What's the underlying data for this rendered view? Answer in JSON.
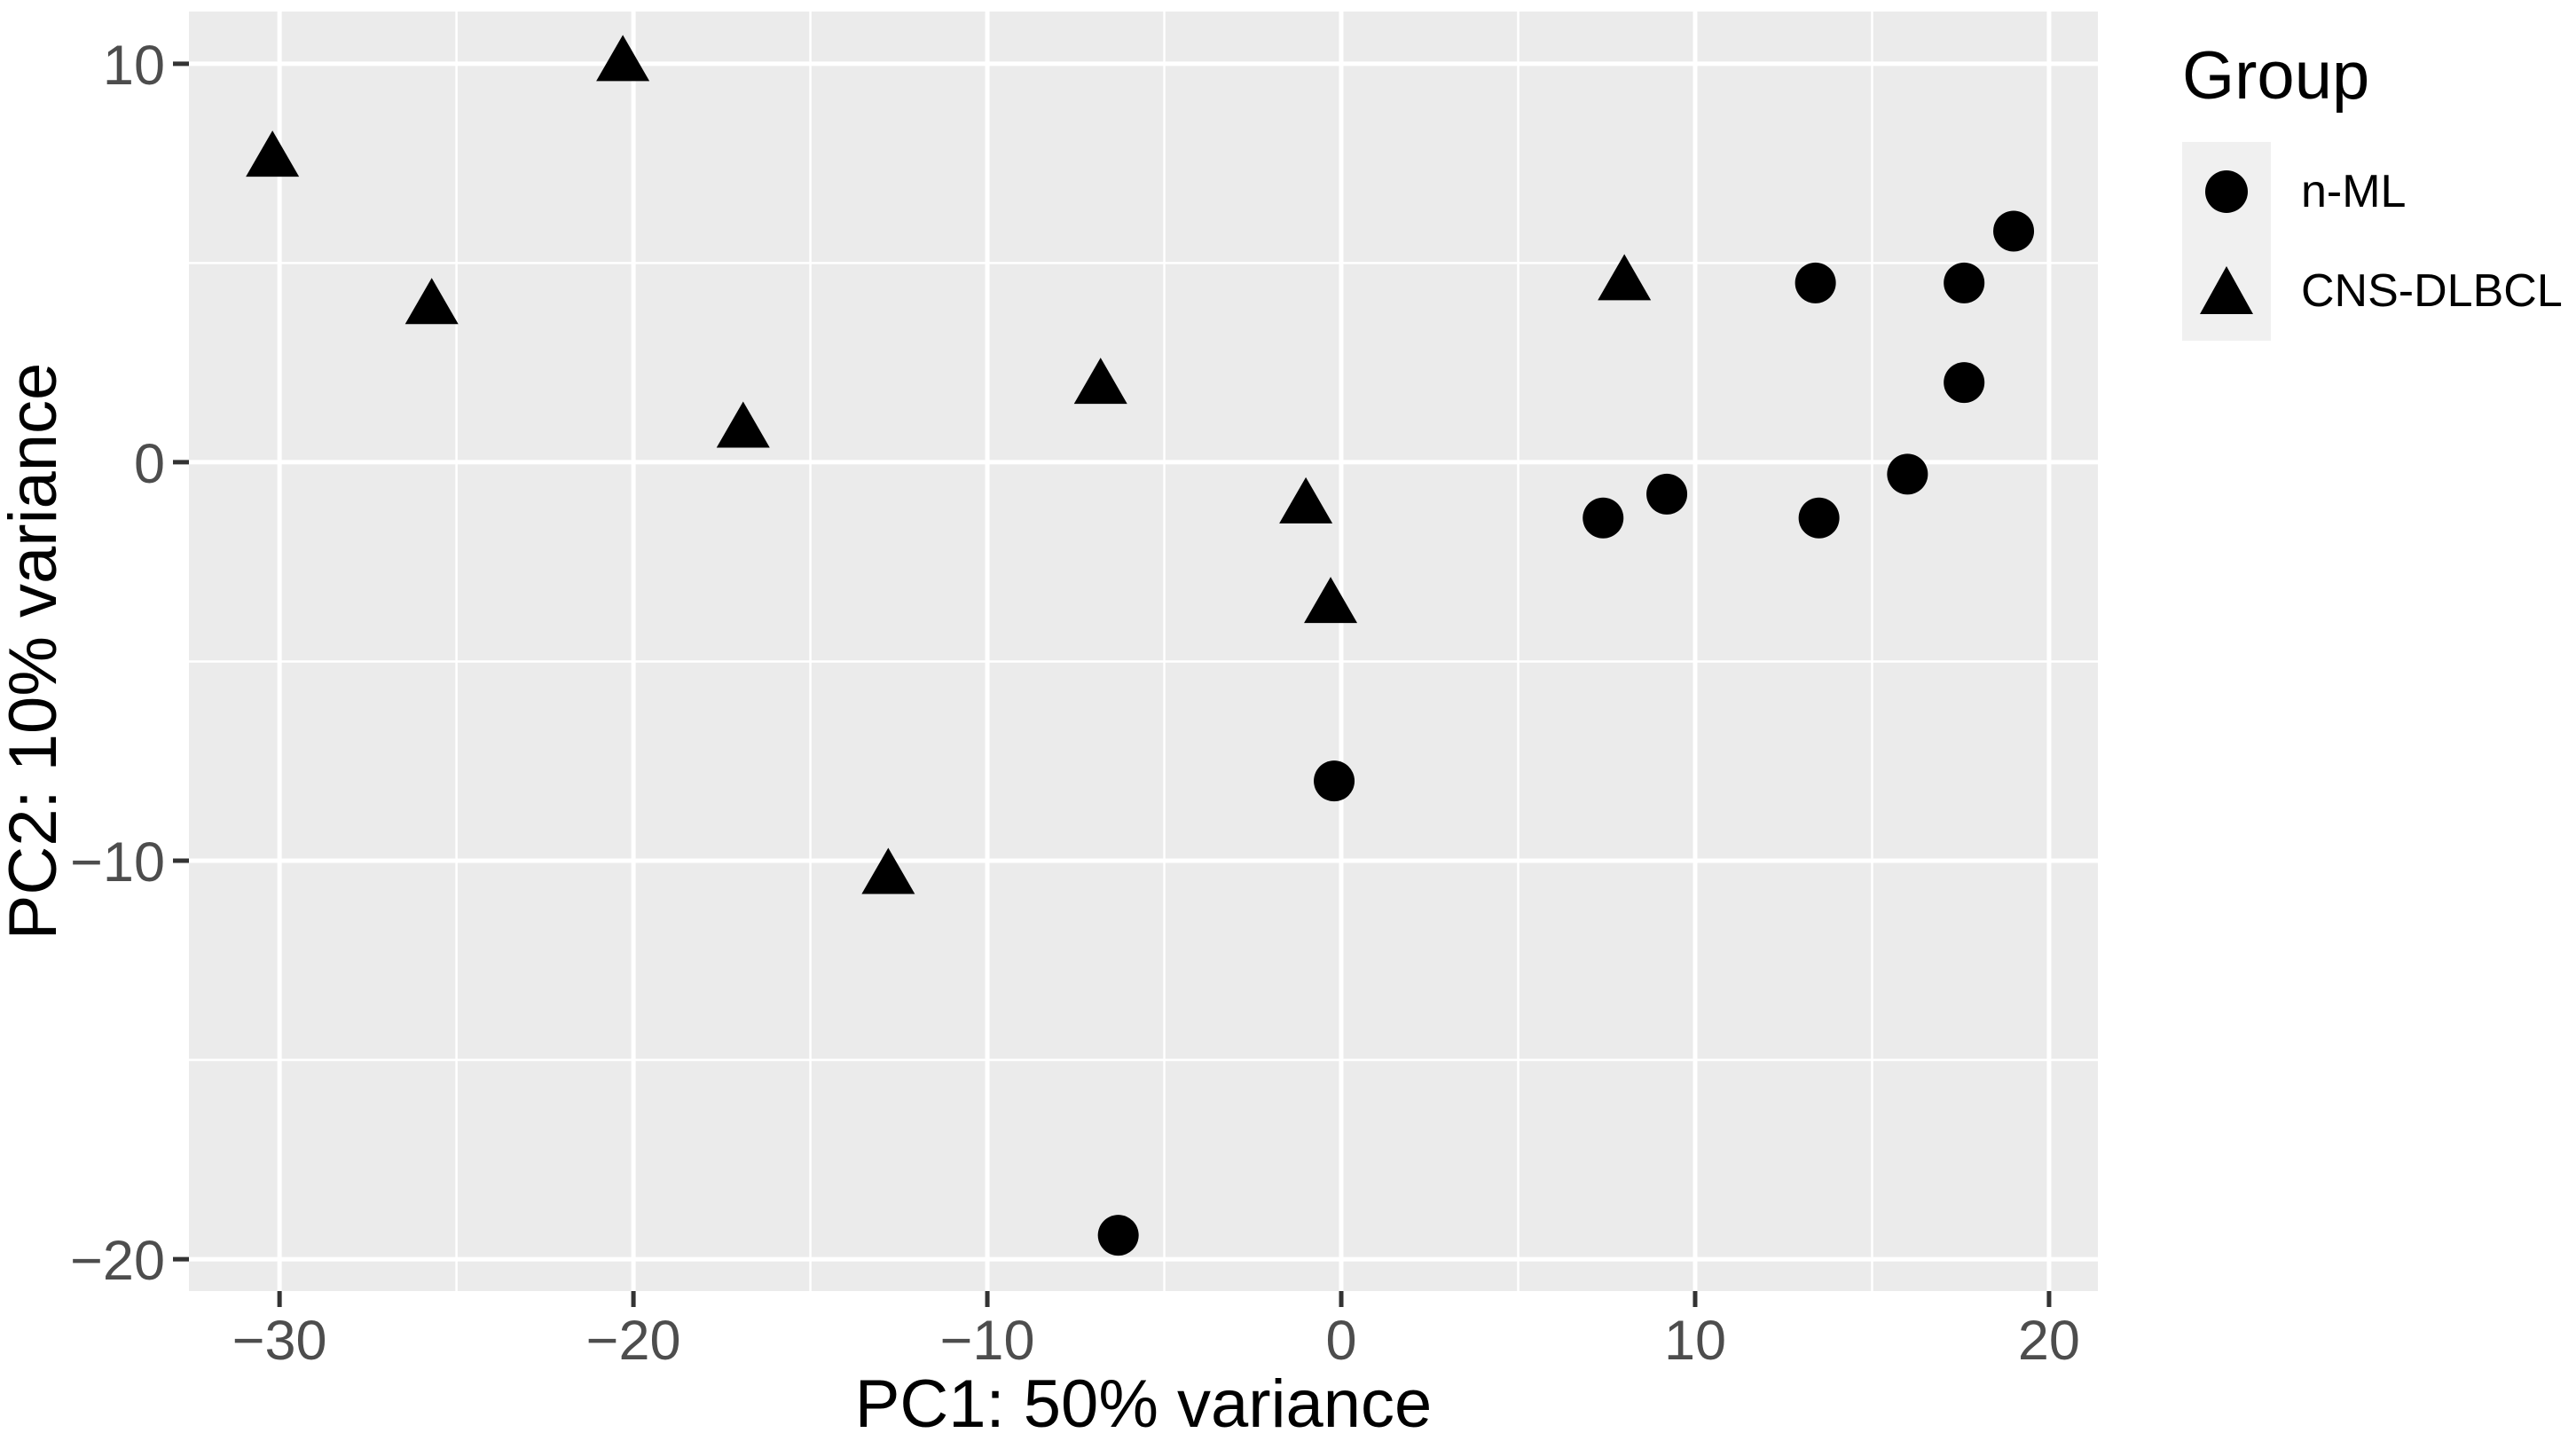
{
  "chart_data": {
    "type": "scatter",
    "title": "",
    "xlabel": "PC1: 50% variance",
    "ylabel": "PC2: 10% variance",
    "xlim": [
      -32.56,
      21.38
    ],
    "ylim": [
      -20.8,
      11.31
    ],
    "x_major_ticks": [
      -30,
      -20,
      -10,
      0,
      10,
      20
    ],
    "x_tick_labels": [
      "-30",
      "-20",
      "-10",
      "0",
      "10",
      "20"
    ],
    "y_major_ticks": [
      10,
      0,
      -10,
      -20
    ],
    "y_tick_labels": [
      "10",
      "0",
      "-10",
      "-20"
    ],
    "x_minor_ticks": [
      -25,
      -15,
      -5,
      5,
      15
    ],
    "y_minor_ticks": [
      5,
      -5,
      -15
    ],
    "grid": "on",
    "legend": {
      "title": "Group",
      "position": "right",
      "items": [
        {
          "label": "n-ML",
          "marker": "circle-marker-icon"
        },
        {
          "label": "CNS-DLBCL",
          "marker": "triangle-marker-icon"
        }
      ]
    },
    "series": [
      {
        "name": "n-ML",
        "marker": "circle",
        "points": [
          [
            -6.3,
            -19.4
          ],
          [
            -0.2,
            -8.0
          ],
          [
            7.4,
            -1.4
          ],
          [
            9.2,
            -0.8
          ],
          [
            13.4,
            4.5
          ],
          [
            13.5,
            -1.4
          ],
          [
            16.0,
            -0.3
          ],
          [
            17.6,
            4.5
          ],
          [
            17.6,
            2.0
          ],
          [
            19.0,
            5.8
          ]
        ]
      },
      {
        "name": "CNS-DLBCL",
        "marker": "triangle",
        "points": [
          [
            -30.2,
            7.7
          ],
          [
            -25.7,
            4.0
          ],
          [
            -20.3,
            10.1
          ],
          [
            -16.9,
            0.9
          ],
          [
            -12.8,
            -10.3
          ],
          [
            -6.8,
            2.0
          ],
          [
            -1.0,
            -1.0
          ],
          [
            -0.3,
            -3.5
          ],
          [
            8.0,
            4.6
          ]
        ]
      }
    ],
    "theme": {
      "panel_background": "#EBEBEB",
      "grid_color": "#FFFFFF",
      "marker_color": "#000000",
      "tick_label_color": "#4D4D4D",
      "tick_mark_color": "#333333",
      "axis_title_color": "#000000",
      "legend_key_background": "#F0F0F0"
    }
  }
}
